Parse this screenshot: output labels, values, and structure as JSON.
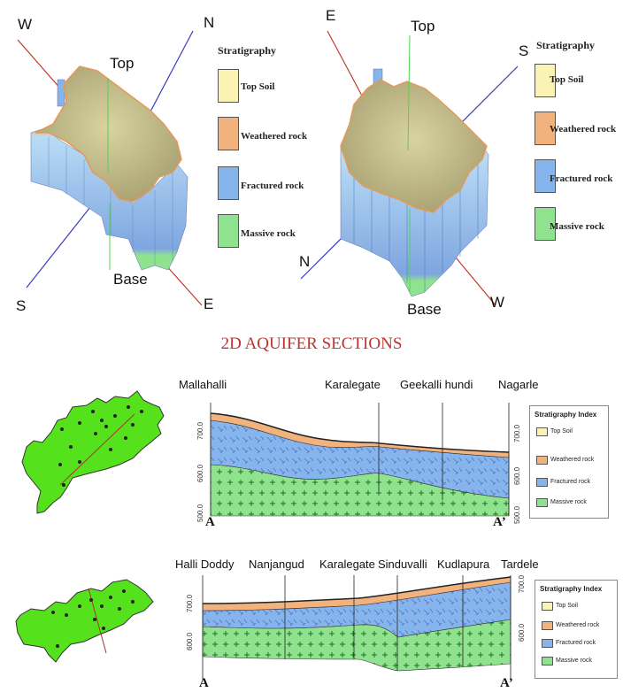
{
  "block1": {
    "dir_w": "W",
    "dir_n": "N",
    "dir_s": "S",
    "dir_e": "E",
    "top": "Top",
    "base": "Base"
  },
  "block2": {
    "dir_e": "E",
    "dir_s": "S",
    "dir_n": "N",
    "dir_w": "W",
    "top": "Top",
    "base": "Base"
  },
  "stratigraphy_legend": {
    "title": "Stratigraphy",
    "items": [
      {
        "label": "Top Soil",
        "color": "#fbf3b3"
      },
      {
        "label": "Weathered rock",
        "color": "#f2b27e"
      },
      {
        "label": "Fractured rock",
        "color": "#86b4ec"
      },
      {
        "label": "Massive rock",
        "color": "#8fe38f"
      }
    ]
  },
  "section_title": "2D AQUIFER SECTIONS",
  "section1": {
    "locations": [
      "Mallahalli",
      "Karalegate",
      "Geekalli hundi",
      "Nagarle"
    ],
    "start": "A",
    "end": "A’",
    "ticks": [
      "700.0",
      "600.0",
      "500.0"
    ],
    "index_title": "Stratigraphy Index",
    "index_items": [
      "Top Soil",
      "Weathered rock",
      "Fractured rock",
      "Massive rock"
    ]
  },
  "section2": {
    "locations": [
      "Halli Doddy",
      "Nanjangud",
      "Karalegate",
      "Sinduvalli",
      "Kudlapura",
      "Tardele"
    ],
    "start": "A",
    "end": "A’",
    "ticks": [
      "700.0",
      "600.0"
    ],
    "index_title": "Stratigraphy Index",
    "index_items": [
      "Top Soil",
      "Weathered rock",
      "Fractured rock",
      "Massive rock"
    ]
  },
  "colors": {
    "top_soil": "#fbf3b3",
    "weathered": "#f2b27e",
    "fractured": "#86b4ec",
    "massive": "#8fe38f",
    "map_green": "#55e21d",
    "title_red": "#c0322e"
  }
}
